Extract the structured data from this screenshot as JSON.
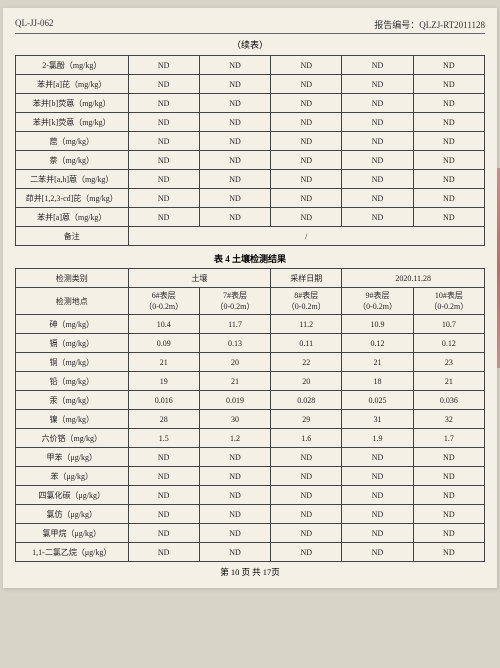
{
  "header": {
    "doc_code": "QL-JJ-062",
    "report_no_label": "报告编号：",
    "report_no": "QLZJ-RT2011128"
  },
  "cont_label": "（续表）",
  "table1": {
    "rows": [
      {
        "param": "2-氯酚（mg/kg）",
        "v": [
          "ND",
          "ND",
          "ND",
          "ND",
          "ND"
        ]
      },
      {
        "param": "苯并[a]芘（mg/kg）",
        "v": [
          "ND",
          "ND",
          "ND",
          "ND",
          "ND"
        ]
      },
      {
        "param": "苯并[b]荧蒽（mg/kg）",
        "v": [
          "ND",
          "ND",
          "ND",
          "ND",
          "ND"
        ]
      },
      {
        "param": "苯并[k]荧蒽（mg/kg）",
        "v": [
          "ND",
          "ND",
          "ND",
          "ND",
          "ND"
        ]
      },
      {
        "param": "䓛（mg/kg）",
        "v": [
          "ND",
          "ND",
          "ND",
          "ND",
          "ND"
        ]
      },
      {
        "param": "萘（mg/kg）",
        "v": [
          "ND",
          "ND",
          "ND",
          "ND",
          "ND"
        ]
      },
      {
        "param": "二苯并[a,h]蒽（mg/kg）",
        "v": [
          "ND",
          "ND",
          "ND",
          "ND",
          "ND"
        ]
      },
      {
        "param": "茚并[1,2,3-cd]芘（mg/kg）",
        "v": [
          "ND",
          "ND",
          "ND",
          "ND",
          "ND"
        ]
      },
      {
        "param": "苯并[a]蒽（mg/kg）",
        "v": [
          "ND",
          "ND",
          "ND",
          "ND",
          "ND"
        ]
      }
    ],
    "note_label": "备注",
    "note_value": "/"
  },
  "table2": {
    "title": "表 4 土壤检测结果",
    "hdr": {
      "cat_label": "检测类别",
      "cat_value": "土壤",
      "date_label": "采样日期",
      "date_value": "2020.11.28",
      "loc_label": "检测地点",
      "cols": [
        "6#表层\n（0-0.2m）",
        "7#表层\n（0-0.2m）",
        "8#表层\n（0-0.2m）",
        "9#表层\n（0-0.2m）",
        "10#表层\n（0-0.2m）"
      ]
    },
    "rows": [
      {
        "param": "砷（mg/kg）",
        "v": [
          "10.4",
          "11.7",
          "11.2",
          "10.9",
          "10.7"
        ]
      },
      {
        "param": "镉（mg/kg）",
        "v": [
          "0.09",
          "0.13",
          "0.11",
          "0.12",
          "0.12"
        ]
      },
      {
        "param": "铜（mg/kg）",
        "v": [
          "21",
          "20",
          "22",
          "21",
          "23"
        ]
      },
      {
        "param": "铅（mg/kg）",
        "v": [
          "19",
          "21",
          "20",
          "18",
          "21"
        ]
      },
      {
        "param": "汞（mg/kg）",
        "v": [
          "0.016",
          "0.019",
          "0.028",
          "0.025",
          "0.036"
        ]
      },
      {
        "param": "镍（mg/kg）",
        "v": [
          "28",
          "30",
          "29",
          "31",
          "32"
        ]
      },
      {
        "param": "六价铬（mg/kg）",
        "v": [
          "1.5",
          "1.2",
          "1.6",
          "1.9",
          "1.7"
        ]
      },
      {
        "param": "甲苯（μg/kg）",
        "v": [
          "ND",
          "ND",
          "ND",
          "ND",
          "ND"
        ]
      },
      {
        "param": "苯（μg/kg）",
        "v": [
          "ND",
          "ND",
          "ND",
          "ND",
          "ND"
        ]
      },
      {
        "param": "四氯化碳（μg/kg）",
        "v": [
          "ND",
          "ND",
          "ND",
          "ND",
          "ND"
        ]
      },
      {
        "param": "氯仿（μg/kg）",
        "v": [
          "ND",
          "ND",
          "ND",
          "ND",
          "ND"
        ]
      },
      {
        "param": "氯甲烷（μg/kg）",
        "v": [
          "ND",
          "ND",
          "ND",
          "ND",
          "ND"
        ]
      },
      {
        "param": "1,1-二氯乙烷（μg/kg）",
        "v": [
          "ND",
          "ND",
          "ND",
          "ND",
          "ND"
        ]
      }
    ]
  },
  "footer": "第 10 页  共 17页"
}
